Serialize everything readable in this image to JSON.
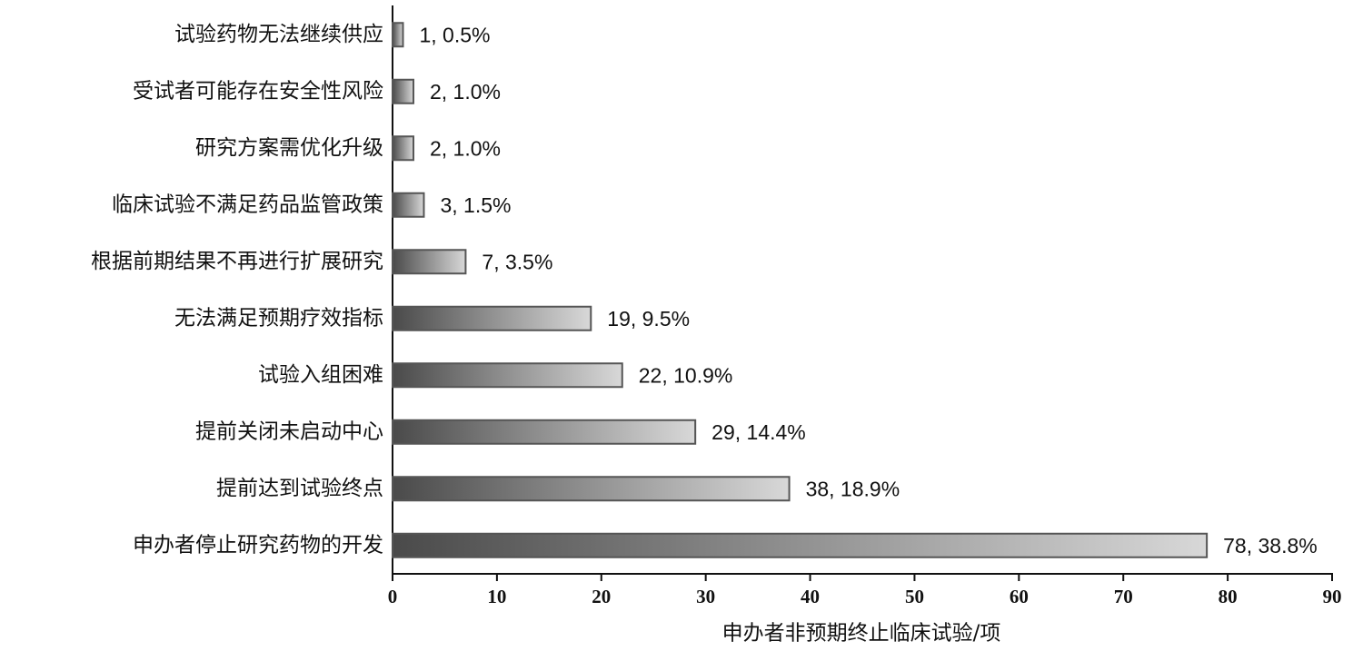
{
  "chart_data": {
    "type": "bar",
    "orientation": "horizontal",
    "x_label": "申办者非预期终止临床试验/项",
    "categories": [
      "试验药物无法继续供应",
      "受试者可能存在安全性风险",
      "研究方案需优化升级",
      "临床试验不满足药品监管政策",
      "根据前期结果不再进行扩展研究",
      "无法满足预期疗效指标",
      "试验入组困难",
      "提前关闭未启动中心",
      "提前达到试验终点",
      "申办者停止研究药物的开发"
    ],
    "values": [
      1,
      2,
      2,
      3,
      7,
      19,
      22,
      29,
      38,
      78
    ],
    "value_labels": [
      "1, 0.5%",
      "2, 1.0%",
      "2, 1.0%",
      "3, 1.5%",
      "7, 3.5%",
      "19, 9.5%",
      "22, 10.9%",
      "29, 14.4%",
      "38, 18.9%",
      "78, 38.8%"
    ],
    "color": [
      "#4a4a4a",
      "#d8d8d8"
    ],
    "xlim": [
      0,
      90
    ],
    "xticks": [
      0,
      10,
      20,
      30,
      40,
      50,
      60,
      70,
      80,
      90
    ],
    "grid": false
  }
}
